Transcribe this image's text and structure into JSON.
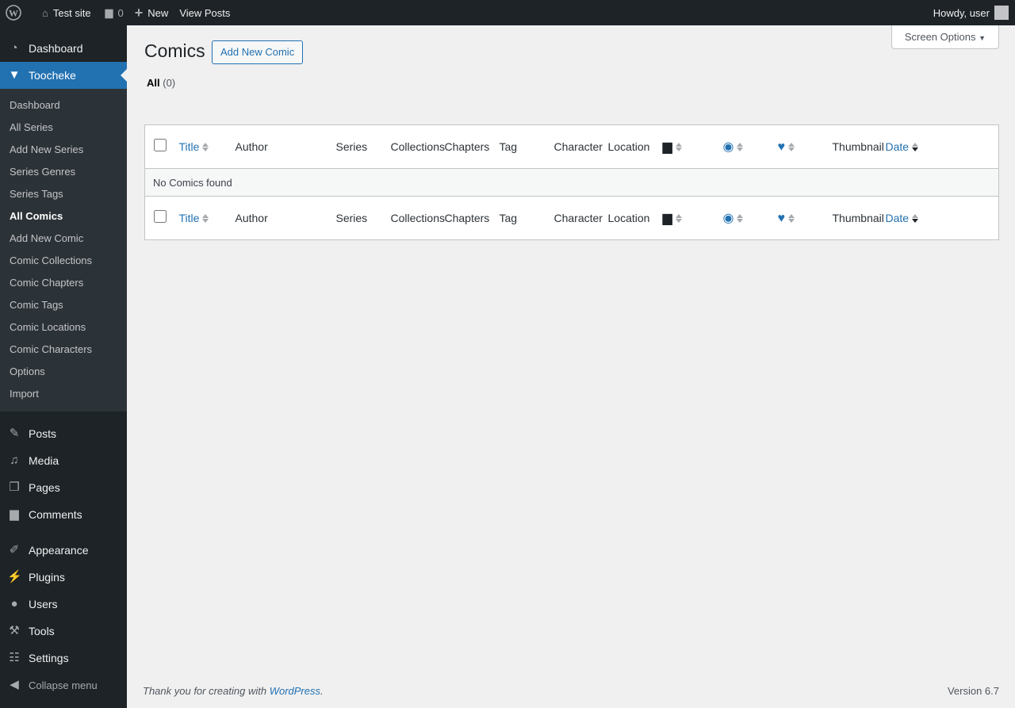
{
  "adminbar": {
    "site": "Test site",
    "comments": "0",
    "new": "New",
    "view_posts": "View Posts",
    "howdy": "Howdy, user"
  },
  "sidebar": {
    "top": [
      {
        "label": "Dashboard",
        "icon": "dashboard-icon"
      },
      {
        "label": "Toocheke",
        "icon": "toocheke-icon"
      }
    ],
    "submenu": [
      "Dashboard",
      "All Series",
      "Add New Series",
      "Series Genres",
      "Series Tags",
      "All Comics",
      "Add New Comic",
      "Comic Collections",
      "Comic Chapters",
      "Comic Tags",
      "Comic Locations",
      "Comic Characters",
      "Options",
      "Import"
    ],
    "current_sub": "All Comics",
    "bottom": [
      {
        "label": "Posts",
        "icon": "pin-icon"
      },
      {
        "label": "Media",
        "icon": "media-icon"
      },
      {
        "label": "Pages",
        "icon": "pages-icon"
      },
      {
        "label": "Comments",
        "icon": "comment-icon"
      },
      {
        "label": "Appearance",
        "icon": "brush-icon"
      },
      {
        "label": "Plugins",
        "icon": "plugin-icon"
      },
      {
        "label": "Users",
        "icon": "user-icon"
      },
      {
        "label": "Tools",
        "icon": "wrench-icon"
      },
      {
        "label": "Settings",
        "icon": "settings-icon"
      }
    ],
    "collapse": "Collapse menu"
  },
  "page": {
    "title": "Comics",
    "add_new": "Add New Comic",
    "screen_options": "Screen Options",
    "filter_all": "All",
    "filter_count": "(0)"
  },
  "table": {
    "columns": {
      "title": "Title",
      "author": "Author",
      "series": "Series",
      "collections": "Collections",
      "chapters": "Chapters",
      "tag": "Tag",
      "character": "Character",
      "location": "Location",
      "thumbnail": "Thumbnail",
      "date": "Date"
    },
    "empty": "No Comics found"
  },
  "footer": {
    "thanks": "Thank you for creating with ",
    "link": "WordPress",
    "version": "Version 6.7"
  },
  "colors": {
    "accent": "#2271b1",
    "sidebar": "#1d2327"
  }
}
